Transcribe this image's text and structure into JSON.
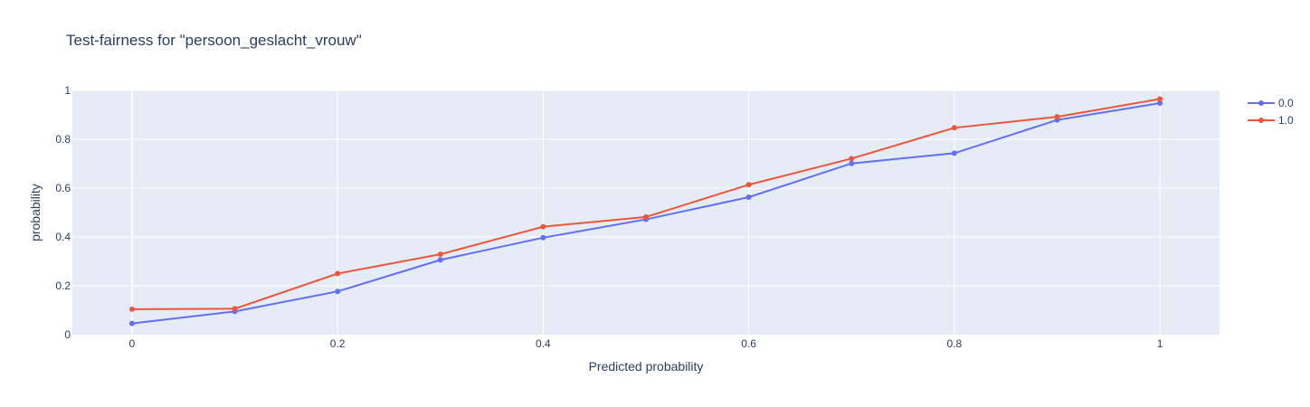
{
  "chart_data": {
    "type": "line",
    "title": "Test-fairness for \"persoon_geslacht_vrouw\"",
    "xlabel": "Predicted probability",
    "ylabel": "probability",
    "xlim": [
      -0.058,
      1.058
    ],
    "ylim": [
      0,
      1
    ],
    "x_ticks": [
      0,
      0.2,
      0.4,
      0.6,
      0.8,
      1
    ],
    "x_tick_labels": [
      "0",
      "0.2",
      "0.4",
      "0.6",
      "0.8",
      "1"
    ],
    "y_ticks": [
      0,
      0.2,
      0.4,
      0.6,
      0.8,
      1
    ],
    "y_tick_labels": [
      "0",
      "0.2",
      "0.4",
      "0.6",
      "0.8",
      "1"
    ],
    "grid": true,
    "legend_position": "top-right",
    "x": [
      0,
      0.1,
      0.2,
      0.3,
      0.4,
      0.5,
      0.6,
      0.7,
      0.8,
      0.9,
      1.0
    ],
    "series": [
      {
        "name": "0.0",
        "color": "#636efa",
        "values": [
          0.046,
          0.095,
          0.177,
          0.306,
          0.397,
          0.472,
          0.563,
          0.701,
          0.743,
          0.879,
          0.948
        ]
      },
      {
        "name": "1.0",
        "color": "#ef553b",
        "values": [
          0.104,
          0.106,
          0.25,
          0.329,
          0.442,
          0.482,
          0.614,
          0.721,
          0.847,
          0.892,
          0.965
        ]
      }
    ]
  }
}
